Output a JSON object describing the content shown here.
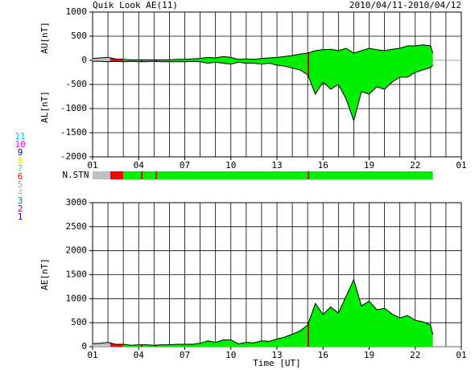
{
  "chart_data": [
    {
      "type": "band",
      "title": "Quik Look AE(11)",
      "subtitle": "2010/04/11-2010/04/12",
      "ylabel": [
        "AU[nT]",
        "AL[nT]"
      ],
      "x": [
        1,
        1.5,
        2,
        2.5,
        3,
        3.5,
        4,
        4.5,
        5,
        5.5,
        6,
        6.5,
        7,
        7.5,
        8,
        8.5,
        9,
        9.5,
        10,
        10.5,
        11,
        11.5,
        12,
        12.5,
        13,
        13.5,
        14,
        14.5,
        15,
        15.5,
        16,
        16.5,
        17,
        17.5,
        18,
        18.5,
        19,
        19.5,
        20,
        20.5,
        21,
        21.5,
        22,
        22.5,
        23,
        23.15
      ],
      "series": [
        {
          "color": "#000000",
          "values": [
            40,
            50,
            60,
            30,
            20,
            10,
            10,
            10,
            10,
            10,
            10,
            20,
            20,
            30,
            40,
            60,
            50,
            80,
            60,
            20,
            30,
            20,
            40,
            50,
            60,
            80,
            100,
            130,
            150,
            200,
            220,
            230,
            200,
            250,
            150,
            200,
            250,
            220,
            200,
            230,
            250,
            300,
            300,
            320,
            300,
            150
          ]
        },
        {
          "color": "#000000",
          "values": [
            -20,
            -20,
            -30,
            -20,
            -30,
            -20,
            -30,
            -30,
            -20,
            -30,
            -30,
            -30,
            -30,
            -20,
            -30,
            -60,
            -40,
            -60,
            -80,
            -40,
            -60,
            -60,
            -80,
            -60,
            -100,
            -120,
            -160,
            -200,
            -300,
            -700,
            -450,
            -600,
            -500,
            -800,
            -1250,
            -650,
            -700,
            -550,
            -600,
            -450,
            -350,
            -350,
            -250,
            -200,
            -150,
            -100
          ]
        }
      ],
      "xlim": [
        1,
        25
      ],
      "xticks": [
        {
          "value": 1,
          "label": "01"
        },
        {
          "value": 4,
          "label": "04"
        },
        {
          "value": 7,
          "label": "07"
        },
        10,
        13,
        16,
        19,
        22,
        {
          "value": 25,
          "label": "01"
        }
      ],
      "xgrid": [
        1,
        2,
        3,
        4,
        5,
        6,
        7,
        8,
        9,
        10,
        11,
        12,
        13,
        14,
        15,
        16,
        17,
        18,
        19,
        20,
        21,
        22,
        23,
        24,
        25
      ],
      "ylim": [
        -2000,
        1000
      ],
      "yticks": [
        -2000,
        -1500,
        -1000,
        -500,
        0,
        500,
        1000
      ],
      "grid": true
    },
    {
      "type": "strip",
      "label": "N.STN",
      "xlim": [
        1,
        25
      ],
      "segments": [
        {
          "start": 1,
          "end": 2.15,
          "color": "#c0c0c0"
        },
        {
          "start": 2.15,
          "end": 3.0,
          "color": "#ff0000"
        },
        {
          "start": 3.0,
          "end": 4.15,
          "color": "#00ee00"
        },
        {
          "start": 4.15,
          "end": 4.25,
          "color": "#cc0000"
        },
        {
          "start": 4.25,
          "end": 5.1,
          "color": "#00ee00"
        },
        {
          "start": 5.1,
          "end": 5.2,
          "color": "#cc0000"
        },
        {
          "start": 5.2,
          "end": 15.0,
          "color": "#00ee00"
        },
        {
          "start": 15.0,
          "end": 15.1,
          "color": "#cc0000"
        },
        {
          "start": 15.1,
          "end": 23.15,
          "color": "#00ee00"
        }
      ],
      "legend": [
        {
          "label": "11",
          "color": "#00c8ff"
        },
        {
          "label": "10",
          "color": "#ff00ff"
        },
        {
          "label": "9",
          "color": "#000080"
        },
        {
          "label": "8",
          "color": "#e8e800"
        },
        {
          "label": "7",
          "color": "#40e040"
        },
        {
          "label": "6",
          "color": "#ff0000"
        },
        {
          "label": "5",
          "color": "#a0a0a0"
        },
        {
          "label": "4",
          "color": "#c0c0c0"
        },
        {
          "label": "3",
          "color": "#008080"
        },
        {
          "label": "2",
          "color": "#a000a0"
        },
        {
          "label": "1",
          "color": "#0000ff"
        }
      ]
    },
    {
      "type": "area",
      "ylabel": "AE[nT]",
      "xlabel": "Time [UT]",
      "x": [
        1,
        1.5,
        2,
        2.5,
        3,
        3.5,
        4,
        4.5,
        5,
        5.5,
        6,
        6.5,
        7,
        7.5,
        8,
        8.5,
        9,
        9.5,
        10,
        10.5,
        11,
        11.5,
        12,
        12.5,
        13,
        13.5,
        14,
        14.5,
        15,
        15.5,
        16,
        16.5,
        17,
        17.5,
        18,
        18.5,
        19,
        19.5,
        20,
        20.5,
        21,
        21.5,
        22,
        22.5,
        23,
        23.15
      ],
      "series": [
        {
          "color": "#000000",
          "values": [
            60,
            70,
            90,
            50,
            50,
            30,
            40,
            40,
            30,
            40,
            40,
            50,
            50,
            50,
            70,
            120,
            90,
            140,
            140,
            60,
            90,
            80,
            120,
            110,
            160,
            200,
            260,
            330,
            450,
            900,
            670,
            830,
            700,
            1050,
            1400,
            850,
            950,
            770,
            800,
            680,
            600,
            650,
            550,
            520,
            450,
            250
          ]
        }
      ],
      "xlim": [
        1,
        25
      ],
      "xticks": [
        {
          "value": 1,
          "label": "01"
        },
        {
          "value": 4,
          "label": "04"
        },
        {
          "value": 7,
          "label": "07"
        },
        10,
        13,
        16,
        19,
        22,
        {
          "value": 25,
          "label": "01"
        }
      ],
      "xgrid": [
        1,
        2,
        3,
        4,
        5,
        6,
        7,
        8,
        9,
        10,
        11,
        12,
        13,
        14,
        15,
        16,
        17,
        18,
        19,
        20,
        21,
        22,
        23,
        24,
        25
      ],
      "ylim": [
        0,
        3000
      ],
      "yticks": [
        0,
        500,
        1000,
        1500,
        2000,
        2500,
        3000
      ],
      "grid": true
    }
  ]
}
